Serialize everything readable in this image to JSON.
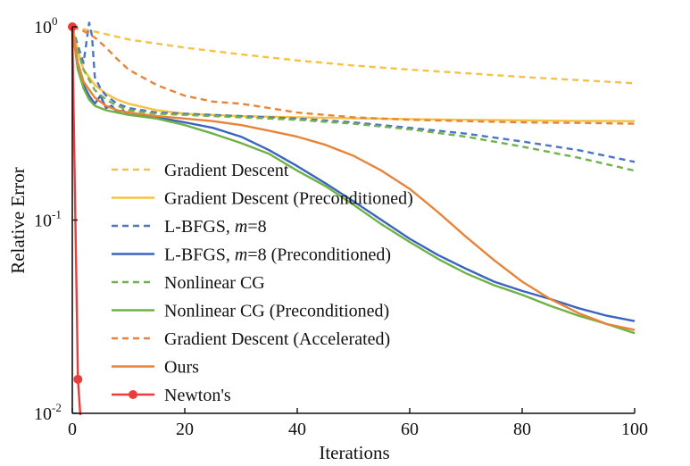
{
  "chart_data": {
    "type": "line",
    "xlabel": "Iterations",
    "ylabel": "Relative Error",
    "xlim": [
      0,
      100
    ],
    "ylim": [
      0.01,
      1
    ],
    "yscale": "log",
    "grid": false,
    "legend_position": "lower-left",
    "x_ticks": [
      {
        "value": 0,
        "label": "0"
      },
      {
        "value": 20,
        "label": "20"
      },
      {
        "value": 40,
        "label": "40"
      },
      {
        "value": 60,
        "label": "60"
      },
      {
        "value": 80,
        "label": "80"
      },
      {
        "value": 100,
        "label": "100"
      }
    ],
    "y_ticks": [
      {
        "value": 1,
        "base": "10",
        "exp": "0"
      },
      {
        "value": 0.1,
        "base": "10",
        "exp": "-1"
      },
      {
        "value": 0.01,
        "base": "10",
        "exp": "-2"
      }
    ],
    "series": [
      {
        "name": "Gradient Descent",
        "color": "#f5c242",
        "dash": "dashed",
        "x": [
          0,
          5,
          10,
          20,
          30,
          40,
          50,
          60,
          70,
          80,
          90,
          100
        ],
        "y": [
          1.0,
          0.93,
          0.86,
          0.78,
          0.72,
          0.67,
          0.63,
          0.6,
          0.575,
          0.55,
          0.53,
          0.51
        ]
      },
      {
        "name": "Gradient Descent (Preconditioned)",
        "color": "#f5c242",
        "dash": "solid",
        "x": [
          0,
          1,
          2,
          4,
          6,
          8,
          10,
          15,
          20,
          30,
          40,
          50,
          60,
          70,
          80,
          90,
          100
        ],
        "y": [
          1.0,
          0.75,
          0.6,
          0.5,
          0.45,
          0.42,
          0.4,
          0.37,
          0.355,
          0.345,
          0.34,
          0.336,
          0.333,
          0.33,
          0.328,
          0.326,
          0.325
        ]
      },
      {
        "name": "L-BFGS, m=8",
        "color": "#4a74c4",
        "dash": "dashed",
        "x": [
          0,
          1,
          2,
          3,
          3.5,
          4,
          5,
          6,
          8,
          10,
          15,
          20,
          30,
          40,
          50,
          60,
          70,
          80,
          90,
          100
        ],
        "y": [
          1.0,
          0.8,
          0.65,
          1.05,
          0.9,
          0.55,
          0.48,
          0.44,
          0.4,
          0.38,
          0.36,
          0.355,
          0.345,
          0.335,
          0.32,
          0.3,
          0.28,
          0.255,
          0.23,
          0.2
        ]
      },
      {
        "name": "L-BFGS, m=8 (Preconditioned)",
        "color": "#3b63c0",
        "dash": "solid",
        "x": [
          0,
          1,
          2,
          3,
          4,
          5,
          6,
          7,
          8,
          9,
          10,
          15,
          20,
          25,
          30,
          35,
          40,
          45,
          50,
          55,
          60,
          65,
          70,
          75,
          80,
          85,
          90,
          95,
          100
        ],
        "y": [
          1.0,
          0.6,
          0.5,
          0.44,
          0.4,
          0.44,
          0.38,
          0.39,
          0.36,
          0.37,
          0.35,
          0.34,
          0.32,
          0.3,
          0.27,
          0.23,
          0.19,
          0.155,
          0.125,
          0.1,
          0.08,
          0.066,
          0.056,
          0.048,
          0.043,
          0.039,
          0.035,
          0.032,
          0.03
        ]
      },
      {
        "name": "Nonlinear CG",
        "color": "#72b24a",
        "dash": "dashed",
        "x": [
          0,
          1,
          2,
          4,
          6,
          8,
          10,
          15,
          20,
          30,
          40,
          50,
          60,
          70,
          80,
          90,
          100
        ],
        "y": [
          1.0,
          0.75,
          0.6,
          0.47,
          0.42,
          0.39,
          0.37,
          0.355,
          0.35,
          0.34,
          0.33,
          0.315,
          0.295,
          0.27,
          0.24,
          0.21,
          0.18
        ]
      },
      {
        "name": "Nonlinear CG (Preconditioned)",
        "color": "#6fb245",
        "dash": "solid",
        "x": [
          0,
          1,
          2,
          3,
          4,
          6,
          8,
          10,
          15,
          20,
          25,
          30,
          35,
          40,
          45,
          50,
          55,
          60,
          65,
          70,
          75,
          80,
          85,
          90,
          95,
          100
        ],
        "y": [
          1.0,
          0.6,
          0.48,
          0.42,
          0.39,
          0.37,
          0.36,
          0.35,
          0.335,
          0.31,
          0.28,
          0.25,
          0.22,
          0.18,
          0.15,
          0.12,
          0.095,
          0.077,
          0.063,
          0.053,
          0.046,
          0.041,
          0.036,
          0.032,
          0.029,
          0.026
        ]
      },
      {
        "name": "Gradient Descent (Accelerated)",
        "color": "#e8843a",
        "dash": "dashed",
        "x": [
          0,
          2,
          4,
          6,
          8,
          10,
          15,
          20,
          25,
          30,
          35,
          40,
          50,
          60,
          70,
          80,
          90,
          100
        ],
        "y": [
          1.0,
          0.95,
          0.88,
          0.78,
          0.68,
          0.6,
          0.5,
          0.44,
          0.41,
          0.4,
          0.38,
          0.36,
          0.34,
          0.33,
          0.325,
          0.32,
          0.318,
          0.315
        ]
      },
      {
        "name": "Ours",
        "color": "#e8843a",
        "dash": "solid",
        "x": [
          0,
          1,
          2,
          4,
          6,
          8,
          10,
          15,
          20,
          25,
          30,
          35,
          40,
          45,
          50,
          55,
          60,
          65,
          70,
          75,
          80,
          85,
          90,
          95,
          100
        ],
        "y": [
          1.0,
          0.65,
          0.52,
          0.43,
          0.39,
          0.37,
          0.36,
          0.345,
          0.335,
          0.325,
          0.31,
          0.29,
          0.27,
          0.245,
          0.215,
          0.18,
          0.145,
          0.11,
          0.082,
          0.062,
          0.048,
          0.039,
          0.033,
          0.029,
          0.027
        ]
      },
      {
        "name": "Newton's",
        "color": "#ec3b3b",
        "dash": "solid",
        "markers": true,
        "x": [
          0,
          1,
          1.5
        ],
        "y": [
          1.0,
          0.015,
          0.009
        ]
      }
    ]
  }
}
